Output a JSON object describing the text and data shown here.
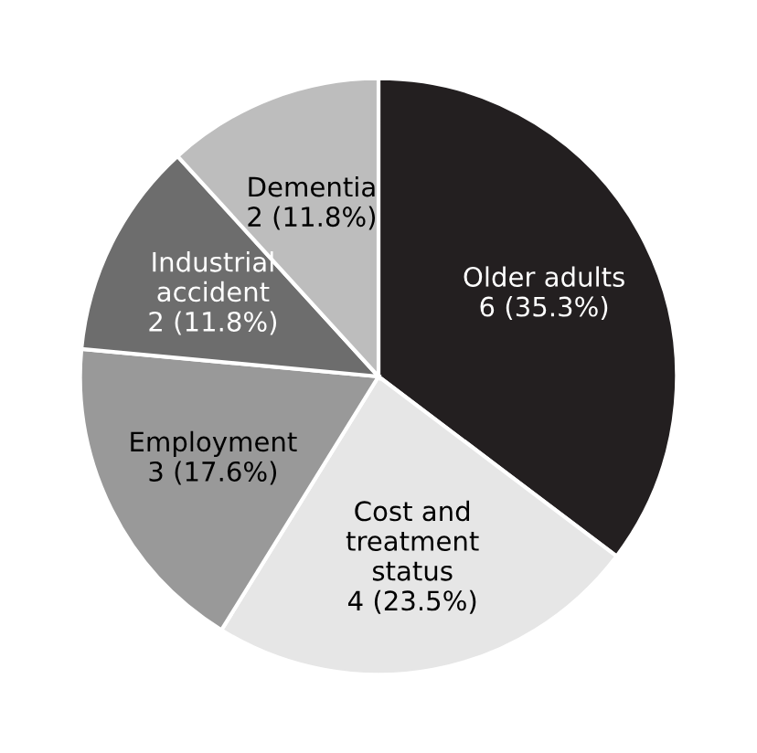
{
  "chart_data": {
    "type": "pie",
    "categories": [
      "Older adults",
      "Cost and\ntreatment\nstatus",
      "Employment",
      "Industrial\naccident",
      "Dementia"
    ],
    "values": [
      6,
      4,
      3,
      2,
      2
    ],
    "value_labels": [
      "6 (35.3%)",
      "4 (23.5%)",
      "3 (17.6%)",
      "2 (11.8%)",
      "2 (11.8%)"
    ],
    "colors": [
      "#231f20",
      "#e6e6e6",
      "#999999",
      "#6d6d6d",
      "#bdbdbd"
    ]
  }
}
